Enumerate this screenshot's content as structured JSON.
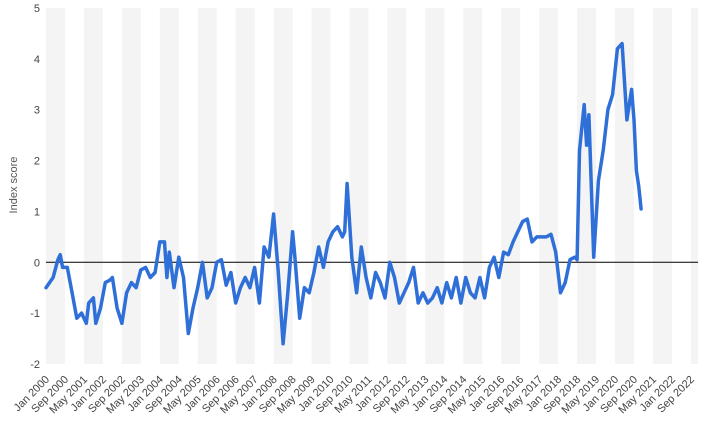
{
  "chart_data": {
    "type": "line",
    "title": "",
    "xlabel": "",
    "ylabel": "Index score",
    "ylim": [
      -2,
      5
    ],
    "y_ticks": [
      -2,
      -1,
      0,
      1,
      2,
      3,
      4,
      5
    ],
    "x_range": [
      "Jan 2000",
      "Dec 2022"
    ],
    "x_tick_labels": [
      "Jan 2000",
      "Sep 2000",
      "May 2001",
      "Jan 2002",
      "Sep 2002",
      "May 2003",
      "Jan 2004",
      "Sep 2004",
      "May 2005",
      "Jan 2006",
      "Sep 2006",
      "May 2007",
      "Jan 2008",
      "Sep 2008",
      "May 2009",
      "Jan 2010",
      "Sep 2010",
      "May 2011",
      "Jan 2012",
      "Sep 2012",
      "May 2013",
      "Jan 2014",
      "Sep 2014",
      "May 2015",
      "Jan 2016",
      "Sep 2016",
      "May 2017",
      "Jan 2018",
      "Sep 2018",
      "May 2019",
      "Jan 2020",
      "Sep 2020",
      "May 2021",
      "Jan 2022",
      "Sep 2022"
    ],
    "grid": "vertical alternating bands",
    "line_color": "#2f6fd8",
    "zero_line_color": "#000000",
    "series": [
      {
        "points": [
          [
            "Jan 2000",
            -0.5
          ],
          [
            "Apr 2000",
            -0.3
          ],
          [
            "Jun 2000",
            0.05
          ],
          [
            "Jul 2000",
            0.15
          ],
          [
            "Aug 2000",
            -0.1
          ],
          [
            "Oct 2000",
            -0.1
          ],
          [
            "Dec 2000",
            -0.6
          ],
          [
            "Feb 2001",
            -1.1
          ],
          [
            "Apr 2001",
            -1.0
          ],
          [
            "Jun 2001",
            -1.2
          ],
          [
            "Jul 2001",
            -0.8
          ],
          [
            "Sep 2001",
            -0.7
          ],
          [
            "Oct 2001",
            -1.2
          ],
          [
            "Dec 2001",
            -0.9
          ],
          [
            "Feb 2002",
            -0.4
          ],
          [
            "Apr 2002",
            -0.35
          ],
          [
            "May 2002",
            -0.3
          ],
          [
            "Jul 2002",
            -0.9
          ],
          [
            "Sep 2002",
            -1.2
          ],
          [
            "Nov 2002",
            -0.6
          ],
          [
            "Jan 2003",
            -0.4
          ],
          [
            "Mar 2003",
            -0.5
          ],
          [
            "May 2003",
            -0.15
          ],
          [
            "Jul 2003",
            -0.1
          ],
          [
            "Sep 2003",
            -0.3
          ],
          [
            "Nov 2003",
            -0.2
          ],
          [
            "Jan 2004",
            0.4
          ],
          [
            "Mar 2004",
            0.4
          ],
          [
            "Apr 2004",
            -0.3
          ],
          [
            "May 2004",
            0.2
          ],
          [
            "Jul 2004",
            -0.5
          ],
          [
            "Sep 2004",
            0.1
          ],
          [
            "Nov 2004",
            -0.3
          ],
          [
            "Jan 2005",
            -1.4
          ],
          [
            "Mar 2005",
            -0.9
          ],
          [
            "May 2005",
            -0.5
          ],
          [
            "Jul 2005",
            0.0
          ],
          [
            "Sep 2005",
            -0.7
          ],
          [
            "Nov 2005",
            -0.5
          ],
          [
            "Jan 2006",
            0.0
          ],
          [
            "Mar 2006",
            0.05
          ],
          [
            "May 2006",
            -0.45
          ],
          [
            "Jul 2006",
            -0.2
          ],
          [
            "Sep 2006",
            -0.8
          ],
          [
            "Nov 2006",
            -0.5
          ],
          [
            "Jan 2007",
            -0.3
          ],
          [
            "Mar 2007",
            -0.5
          ],
          [
            "May 2007",
            -0.1
          ],
          [
            "Jul 2007",
            -0.8
          ],
          [
            "Sep 2007",
            0.3
          ],
          [
            "Nov 2007",
            0.1
          ],
          [
            "Jan 2008",
            0.95
          ],
          [
            "Mar 2008",
            -0.2
          ],
          [
            "May 2008",
            -1.6
          ],
          [
            "Jul 2008",
            -0.6
          ],
          [
            "Sep 2008",
            0.6
          ],
          [
            "Oct 2008",
            0.1
          ],
          [
            "Dec 2008",
            -1.1
          ],
          [
            "Feb 2009",
            -0.5
          ],
          [
            "Apr 2009",
            -0.6
          ],
          [
            "Jun 2009",
            -0.2
          ],
          [
            "Aug 2009",
            0.3
          ],
          [
            "Oct 2009",
            -0.1
          ],
          [
            "Dec 2009",
            0.4
          ],
          [
            "Feb 2010",
            0.6
          ],
          [
            "Apr 2010",
            0.7
          ],
          [
            "Jun 2010",
            0.5
          ],
          [
            "Jul 2010",
            0.6
          ],
          [
            "Aug 2010",
            1.55
          ],
          [
            "Oct 2010",
            0.1
          ],
          [
            "Dec 2010",
            -0.6
          ],
          [
            "Feb 2011",
            0.3
          ],
          [
            "Apr 2011",
            -0.3
          ],
          [
            "Jun 2011",
            -0.7
          ],
          [
            "Aug 2011",
            -0.2
          ],
          [
            "Oct 2011",
            -0.4
          ],
          [
            "Dec 2011",
            -0.7
          ],
          [
            "Feb 2012",
            0.0
          ],
          [
            "Apr 2012",
            -0.3
          ],
          [
            "Jun 2012",
            -0.8
          ],
          [
            "Aug 2012",
            -0.6
          ],
          [
            "Oct 2012",
            -0.4
          ],
          [
            "Dec 2012",
            -0.1
          ],
          [
            "Feb 2013",
            -0.8
          ],
          [
            "Apr 2013",
            -0.6
          ],
          [
            "Jun 2013",
            -0.8
          ],
          [
            "Aug 2013",
            -0.7
          ],
          [
            "Oct 2013",
            -0.5
          ],
          [
            "Dec 2013",
            -0.8
          ],
          [
            "Feb 2014",
            -0.4
          ],
          [
            "Apr 2014",
            -0.7
          ],
          [
            "Jun 2014",
            -0.3
          ],
          [
            "Aug 2014",
            -0.8
          ],
          [
            "Oct 2014",
            -0.3
          ],
          [
            "Dec 2014",
            -0.6
          ],
          [
            "Feb 2015",
            -0.7
          ],
          [
            "Apr 2015",
            -0.3
          ],
          [
            "Jun 2015",
            -0.7
          ],
          [
            "Aug 2015",
            -0.1
          ],
          [
            "Oct 2015",
            0.1
          ],
          [
            "Dec 2015",
            -0.3
          ],
          [
            "Feb 2016",
            0.2
          ],
          [
            "Apr 2016",
            0.15
          ],
          [
            "Jun 2016",
            0.4
          ],
          [
            "Aug 2016",
            0.6
          ],
          [
            "Oct 2016",
            0.8
          ],
          [
            "Dec 2016",
            0.85
          ],
          [
            "Feb 2017",
            0.4
          ],
          [
            "Apr 2017",
            0.5
          ],
          [
            "Jun 2017",
            0.5
          ],
          [
            "Aug 2017",
            0.5
          ],
          [
            "Oct 2017",
            0.55
          ],
          [
            "Dec 2017",
            0.2
          ],
          [
            "Feb 2018",
            -0.6
          ],
          [
            "Apr 2018",
            -0.4
          ],
          [
            "Jun 2018",
            0.05
          ],
          [
            "Aug 2018",
            0.1
          ],
          [
            "Sep 2018",
            0.05
          ],
          [
            "Oct 2018",
            2.2
          ],
          [
            "Dec 2018",
            3.1
          ],
          [
            "Jan 2019",
            2.3
          ],
          [
            "Feb 2019",
            2.9
          ],
          [
            "Apr 2019",
            0.1
          ],
          [
            "Jun 2019",
            1.6
          ],
          [
            "Aug 2019",
            2.2
          ],
          [
            "Oct 2019",
            3.0
          ],
          [
            "Dec 2019",
            3.3
          ],
          [
            "Feb 2020",
            4.2
          ],
          [
            "Apr 2020",
            4.3
          ],
          [
            "Jun 2020",
            2.8
          ],
          [
            "Aug 2020",
            3.4
          ],
          [
            "Sep 2020",
            2.8
          ],
          [
            "Oct 2020",
            1.8
          ],
          [
            "Nov 2020",
            1.5
          ],
          [
            "Dec 2020",
            1.05
          ]
        ]
      }
    ]
  }
}
